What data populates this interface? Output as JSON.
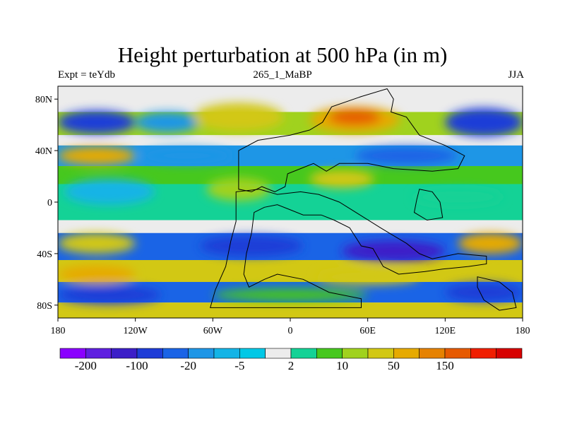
{
  "chart_data": {
    "type": "heatmap",
    "title": "Height perturbation at 500 hPa (in m)",
    "subtitle_left": "Expt = teYdb",
    "subtitle_center": "265_1_MaBP",
    "subtitle_right": "JJA",
    "x_ticks": [
      {
        "value": -180,
        "label": "180"
      },
      {
        "value": -120,
        "label": "120W"
      },
      {
        "value": -60,
        "label": "60W"
      },
      {
        "value": 0,
        "label": "0"
      },
      {
        "value": 60,
        "label": "60E"
      },
      {
        "value": 120,
        "label": "120E"
      },
      {
        "value": 180,
        "label": "180"
      }
    ],
    "y_ticks": [
      {
        "value": 80,
        "label": "80N"
      },
      {
        "value": 40,
        "label": "40N"
      },
      {
        "value": 0,
        "label": "0"
      },
      {
        "value": -40,
        "label": "40S"
      },
      {
        "value": -80,
        "label": "80S"
      }
    ],
    "xlim": [
      -180,
      180
    ],
    "ylim": [
      -90,
      90
    ],
    "colorbar": {
      "colors": [
        "#8a00ff",
        "#5f1fe0",
        "#3c1ec8",
        "#1e3cd7",
        "#1a64e6",
        "#1e96e6",
        "#14b4e6",
        "#00c8e6",
        "#ececec",
        "#14d296",
        "#46c81e",
        "#a0d21e",
        "#d2c814",
        "#e6aa00",
        "#e68200",
        "#e65a00",
        "#f01e00",
        "#d70000"
      ],
      "labels": [
        {
          "boundary": 1,
          "text": "-200"
        },
        {
          "boundary": 3,
          "text": "-100"
        },
        {
          "boundary": 5,
          "text": "-20"
        },
        {
          "boundary": 7,
          "text": "-5"
        },
        {
          "boundary": 9,
          "text": "2"
        },
        {
          "boundary": 11,
          "text": "10"
        },
        {
          "boundary": 13,
          "text": "50"
        },
        {
          "boundary": 15,
          "text": "150"
        }
      ]
    },
    "zonal_bands": [
      {
        "lat_from": 90,
        "lat_to": 70,
        "value": 1,
        "color": "#ececec"
      },
      {
        "lat_from": 70,
        "lat_to": 52,
        "value": 15,
        "color": "#a0d21e"
      },
      {
        "lat_from": 52,
        "lat_to": 44,
        "value": 3,
        "color": "#ececec"
      },
      {
        "lat_from": 44,
        "lat_to": 28,
        "value": -15,
        "color": "#1e96e6"
      },
      {
        "lat_from": 28,
        "lat_to": 14,
        "value": 8,
        "color": "#46c81e"
      },
      {
        "lat_from": 14,
        "lat_to": -14,
        "value": 4,
        "color": "#14d296"
      },
      {
        "lat_from": -14,
        "lat_to": -24,
        "value": 1,
        "color": "#ececec"
      },
      {
        "lat_from": -24,
        "lat_to": -45,
        "value": -40,
        "color": "#1a64e6"
      },
      {
        "lat_from": -45,
        "lat_to": -62,
        "value": 30,
        "color": "#d2c814"
      },
      {
        "lat_from": -62,
        "lat_to": -78,
        "value": -30,
        "color": "#1a64e6"
      },
      {
        "lat_from": -78,
        "lat_to": -90,
        "value": 20,
        "color": "#d2c814"
      }
    ],
    "anomaly_cells": [
      {
        "lon": -150,
        "lat": 62,
        "dlon": 60,
        "dlat": 18,
        "value": -60,
        "color": "#1e3cd7"
      },
      {
        "lon": -95,
        "lat": 62,
        "dlon": 50,
        "dlat": 16,
        "value": -8,
        "color": "#1e96e6"
      },
      {
        "lon": -40,
        "lat": 66,
        "dlon": 70,
        "dlat": 22,
        "value": 30,
        "color": "#d2c814"
      },
      {
        "lon": 50,
        "lat": 64,
        "dlon": 70,
        "dlat": 20,
        "value": 60,
        "color": "#e6aa00"
      },
      {
        "lon": 50,
        "lat": 66,
        "dlon": 40,
        "dlat": 12,
        "value": 120,
        "color": "#e65a00"
      },
      {
        "lon": 150,
        "lat": 62,
        "dlon": 60,
        "dlat": 22,
        "value": -70,
        "color": "#1e3cd7"
      },
      {
        "lon": -150,
        "lat": 36,
        "dlon": 60,
        "dlat": 14,
        "value": 40,
        "color": "#e6aa00"
      },
      {
        "lon": -80,
        "lat": 36,
        "dlon": 70,
        "dlat": 12,
        "value": -15,
        "color": "#1e96e6"
      },
      {
        "lon": 90,
        "lat": 36,
        "dlon": 80,
        "dlat": 14,
        "value": -40,
        "color": "#1a64e6"
      },
      {
        "lon": -140,
        "lat": 8,
        "dlon": 70,
        "dlat": 20,
        "value": -10,
        "color": "#14b4e6"
      },
      {
        "lon": -40,
        "lat": 10,
        "dlon": 50,
        "dlat": 18,
        "value": 10,
        "color": "#a0d21e"
      },
      {
        "lon": 40,
        "lat": 18,
        "dlon": 50,
        "dlat": 14,
        "value": 20,
        "color": "#d2c814"
      },
      {
        "lon": 130,
        "lat": 4,
        "dlon": 70,
        "dlat": 14,
        "value": 5,
        "color": "#14d296"
      },
      {
        "lon": -150,
        "lat": -32,
        "dlon": 60,
        "dlat": 16,
        "value": 30,
        "color": "#d2c814"
      },
      {
        "lon": -30,
        "lat": -34,
        "dlon": 80,
        "dlat": 16,
        "value": -30,
        "color": "#1e3cd7"
      },
      {
        "lon": 80,
        "lat": -38,
        "dlon": 80,
        "dlat": 16,
        "value": -90,
        "color": "#3c1ec8"
      },
      {
        "lon": 155,
        "lat": -32,
        "dlon": 50,
        "dlat": 16,
        "value": 40,
        "color": "#e6aa00"
      },
      {
        "lon": -150,
        "lat": -56,
        "dlon": 60,
        "dlat": 14,
        "value": 50,
        "color": "#e6aa00"
      },
      {
        "lon": 60,
        "lat": -58,
        "dlon": 80,
        "dlat": 12,
        "value": 20,
        "color": "#d2c814"
      },
      {
        "lon": -140,
        "lat": -72,
        "dlon": 80,
        "dlat": 14,
        "value": -60,
        "color": "#1e3cd7"
      },
      {
        "lon": 150,
        "lat": -70,
        "dlon": 60,
        "dlat": 14,
        "value": -50,
        "color": "#1e3cd7"
      },
      {
        "lon": 0,
        "lat": -72,
        "dlon": 120,
        "dlat": 10,
        "value": 5,
        "color": "#46c81e"
      }
    ],
    "continents": [
      {
        "name": "Pangea-north",
        "points": [
          [
            -40,
            10
          ],
          [
            -40,
            40
          ],
          [
            -25,
            48
          ],
          [
            0,
            52
          ],
          [
            15,
            56
          ],
          [
            25,
            62
          ],
          [
            32,
            74
          ],
          [
            55,
            82
          ],
          [
            75,
            88
          ],
          [
            80,
            80
          ],
          [
            78,
            70
          ],
          [
            90,
            66
          ],
          [
            100,
            52
          ],
          [
            120,
            44
          ],
          [
            135,
            36
          ],
          [
            130,
            26
          ],
          [
            110,
            24
          ],
          [
            80,
            26
          ],
          [
            60,
            30
          ],
          [
            38,
            30
          ],
          [
            28,
            24
          ],
          [
            18,
            30
          ],
          [
            8,
            26
          ],
          [
            -2,
            22
          ],
          [
            -4,
            12
          ],
          [
            -12,
            8
          ],
          [
            -22,
            12
          ],
          [
            -30,
            8
          ],
          [
            -40,
            10
          ]
        ]
      },
      {
        "name": "Pangea-south",
        "points": [
          [
            -42,
            8
          ],
          [
            -42,
            -15
          ],
          [
            -46,
            -30
          ],
          [
            -50,
            -50
          ],
          [
            -58,
            -68
          ],
          [
            -62,
            -82
          ],
          [
            0,
            -82
          ],
          [
            55,
            -82
          ],
          [
            55,
            -75
          ],
          [
            30,
            -70
          ],
          [
            10,
            -60
          ],
          [
            -10,
            -56
          ],
          [
            -20,
            -60
          ],
          [
            -32,
            -66
          ],
          [
            -36,
            -56
          ],
          [
            -34,
            -40
          ],
          [
            -30,
            -24
          ],
          [
            -28,
            -8
          ],
          [
            -20,
            -4
          ],
          [
            -10,
            -2
          ],
          [
            0,
            -6
          ],
          [
            10,
            -10
          ],
          [
            24,
            -10
          ],
          [
            34,
            -14
          ],
          [
            46,
            -20
          ],
          [
            55,
            -34
          ],
          [
            64,
            -36
          ],
          [
            72,
            -50
          ],
          [
            84,
            -56
          ],
          [
            104,
            -54
          ],
          [
            118,
            -52
          ],
          [
            138,
            -50
          ],
          [
            152,
            -48
          ],
          [
            152,
            -42
          ],
          [
            130,
            -40
          ],
          [
            110,
            -44
          ],
          [
            100,
            -40
          ],
          [
            90,
            -32
          ],
          [
            80,
            -26
          ],
          [
            70,
            -20
          ],
          [
            54,
            -10
          ],
          [
            38,
            0
          ],
          [
            22,
            6
          ],
          [
            8,
            8
          ],
          [
            -10,
            6
          ],
          [
            -24,
            10
          ],
          [
            -42,
            8
          ]
        ]
      },
      {
        "name": "Siberian-blocks",
        "points": [
          [
            100,
            10
          ],
          [
            110,
            8
          ],
          [
            116,
            0
          ],
          [
            118,
            -12
          ],
          [
            106,
            -14
          ],
          [
            96,
            -8
          ],
          [
            98,
            2
          ],
          [
            100,
            10
          ]
        ]
      },
      {
        "name": "Antarctic-shelf",
        "points": [
          [
            145,
            -58
          ],
          [
            162,
            -62
          ],
          [
            172,
            -70
          ],
          [
            175,
            -82
          ],
          [
            162,
            -84
          ],
          [
            150,
            -76
          ],
          [
            145,
            -66
          ],
          [
            145,
            -58
          ]
        ]
      }
    ]
  }
}
